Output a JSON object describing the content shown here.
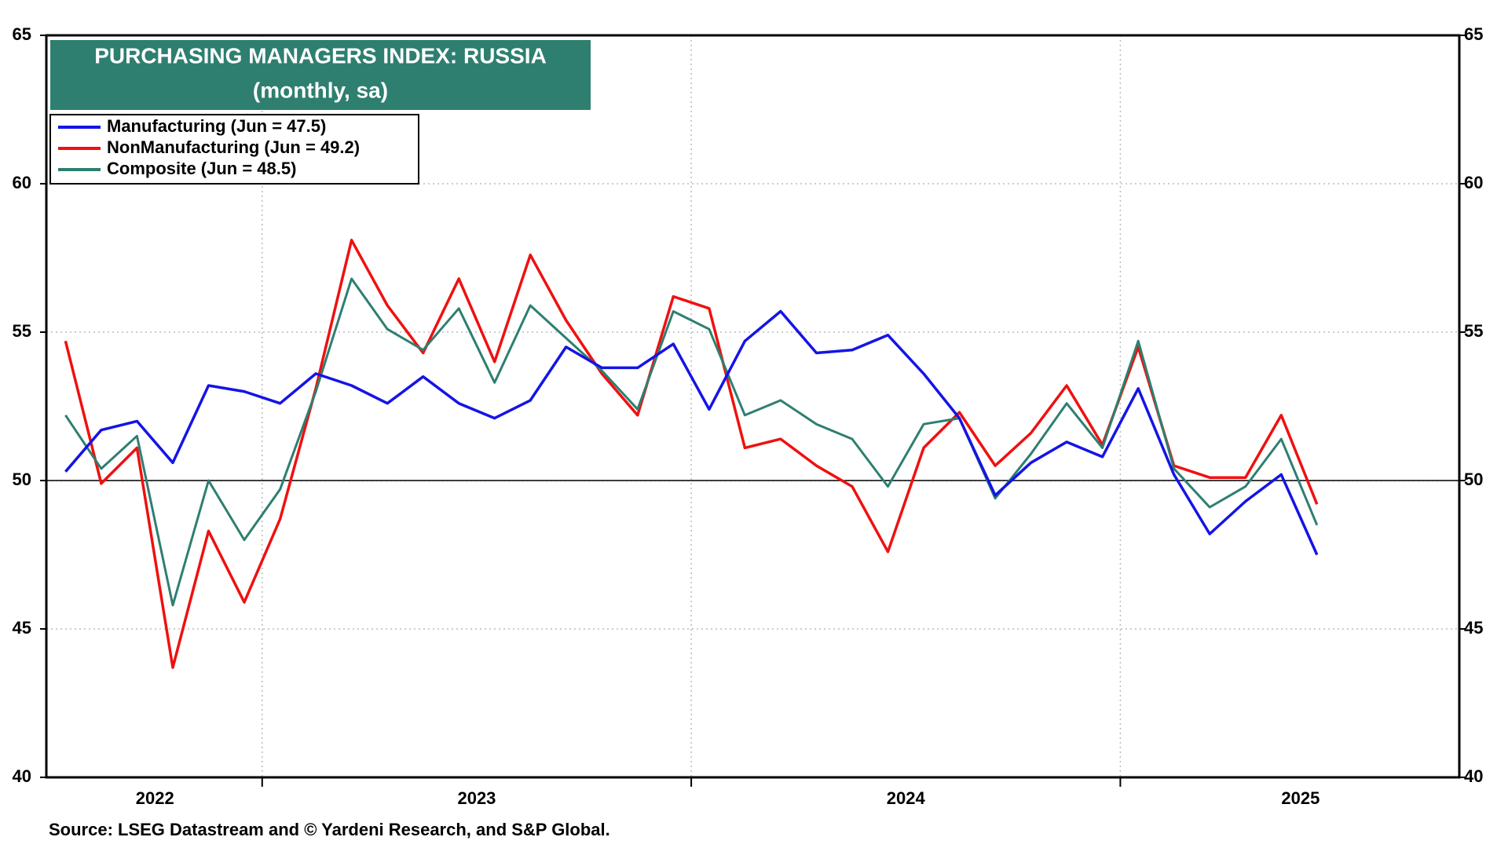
{
  "chart_data": {
    "type": "line",
    "title": "PURCHASING MANAGERS INDEX: RUSSIA",
    "subtitle": "(monthly, sa)",
    "source": "Source: LSEG Datastream and © Yardeni Research, and S&P Global.",
    "x": [
      2022.5417,
      2022.625,
      2022.7083,
      2022.7917,
      2022.875,
      2022.9583,
      2023.0417,
      2023.125,
      2023.2083,
      2023.2917,
      2023.375,
      2023.4583,
      2023.5417,
      2023.625,
      2023.7083,
      2023.7917,
      2023.875,
      2023.9583,
      2024.0417,
      2024.125,
      2024.2083,
      2024.2917,
      2024.375,
      2024.4583,
      2024.5417,
      2024.625,
      2024.7083,
      2024.7917,
      2024.875,
      2024.9583,
      2025.0417,
      2025.125,
      2025.2083,
      2025.2917,
      2025.375,
      2025.4583
    ],
    "series": [
      {
        "name": "Manufacturing (Jun = 47.5)",
        "color": "#1414e6",
        "width": 3.5,
        "values": [
          50.3,
          51.7,
          52.0,
          50.6,
          53.2,
          53.0,
          52.6,
          53.6,
          53.2,
          52.6,
          53.5,
          52.6,
          52.1,
          52.7,
          54.5,
          53.8,
          53.8,
          54.6,
          52.4,
          54.7,
          55.7,
          54.3,
          54.4,
          54.9,
          53.6,
          52.1,
          49.5,
          50.6,
          51.3,
          50.8,
          53.1,
          50.2,
          48.2,
          49.3,
          50.2,
          47.5
        ]
      },
      {
        "name": "NonManufacturing (Jun = 49.2)",
        "color": "#f01010",
        "width": 3.5,
        "values": [
          54.7,
          49.9,
          51.1,
          43.7,
          48.3,
          45.9,
          48.7,
          53.1,
          58.1,
          55.9,
          54.3,
          56.8,
          54.0,
          57.6,
          55.4,
          53.6,
          52.2,
          56.2,
          55.8,
          51.1,
          51.4,
          50.5,
          49.8,
          47.6,
          51.1,
          52.3,
          50.5,
          51.6,
          53.2,
          51.2,
          54.5,
          50.5,
          50.1,
          50.1,
          52.2,
          49.2
        ]
      },
      {
        "name": "Composite (Jun = 48.5)",
        "color": "#2e7f70",
        "width": 3,
        "values": [
          52.2,
          50.4,
          51.5,
          45.8,
          50.0,
          48.0,
          49.7,
          53.0,
          56.8,
          55.1,
          54.4,
          55.8,
          53.3,
          55.9,
          54.8,
          53.7,
          52.4,
          55.7,
          55.1,
          52.2,
          52.7,
          51.9,
          51.4,
          49.8,
          51.9,
          52.1,
          49.4,
          50.9,
          52.6,
          51.1,
          54.7,
          50.4,
          49.1,
          49.8,
          51.4,
          48.5
        ]
      }
    ],
    "xlim": [
      2022.497,
      2025.79
    ],
    "xticks": [
      {
        "value": 2022.75,
        "label": "2022"
      },
      {
        "value": 2023.5,
        "label": "2023"
      },
      {
        "value": 2024.5,
        "label": "2024"
      },
      {
        "value": 2025.42,
        "label": "2025"
      }
    ],
    "xgrid": [
      2023,
      2024,
      2025
    ],
    "ylim": [
      40,
      65
    ],
    "yticks": [
      40,
      45,
      50,
      55,
      60,
      65
    ],
    "y2lim": [
      40,
      65
    ],
    "y2ticks": [
      40,
      45,
      50,
      55,
      60,
      65
    ],
    "hline": 50,
    "grid": true,
    "legend": "upper left"
  }
}
